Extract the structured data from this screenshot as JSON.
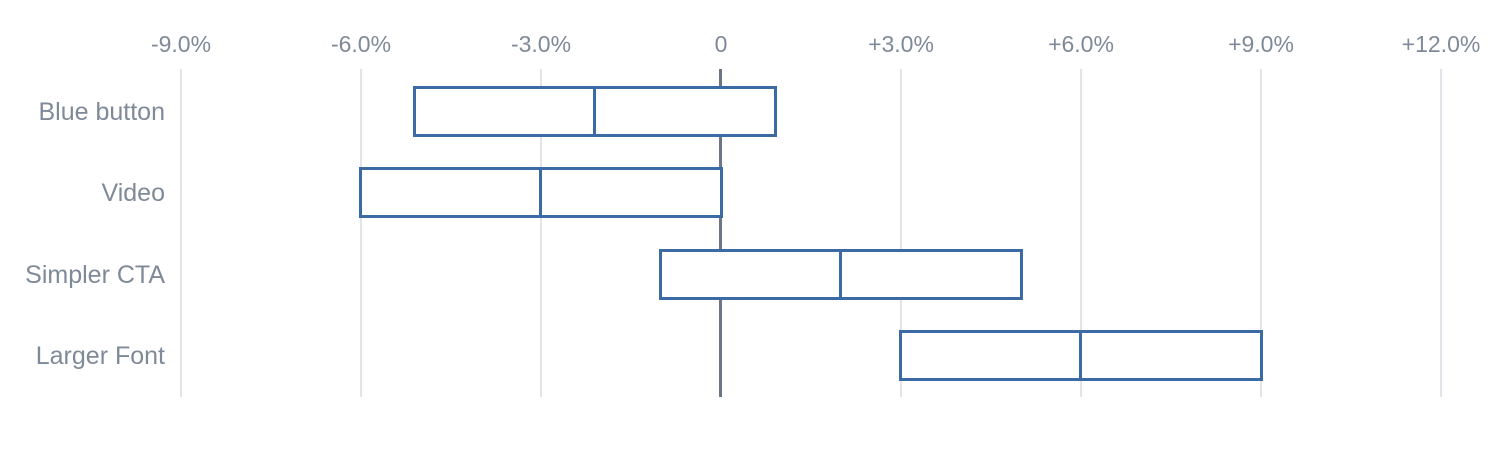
{
  "chart_data": {
    "type": "bar",
    "subtype": "horizontal-range-interval",
    "title": "",
    "xlabel": "",
    "ylabel": "",
    "unit": "%",
    "grid": true,
    "legend": false,
    "x_axis": {
      "position": "top",
      "min": -9,
      "max": 12,
      "ticks": [
        {
          "value": -9,
          "label": "-9.0%"
        },
        {
          "value": -6,
          "label": "-6.0%"
        },
        {
          "value": -3,
          "label": "-3.0%"
        },
        {
          "value": 0,
          "label": "0"
        },
        {
          "value": 3,
          "label": "+3.0%"
        },
        {
          "value": 6,
          "label": "+6.0%"
        },
        {
          "value": 9,
          "label": "+9.0%"
        },
        {
          "value": 12,
          "label": "+12.0%"
        }
      ]
    },
    "categories": [
      "Blue button",
      "Video",
      "Simpler CTA",
      "Larger Font"
    ],
    "series": [
      {
        "label": "Blue button",
        "low": -5.1,
        "mid": -2.1,
        "high": 0.9
      },
      {
        "label": "Video",
        "low": -6.0,
        "mid": -3.0,
        "high": 0.0
      },
      {
        "label": "Simpler CTA",
        "low": -1.0,
        "mid": 2.0,
        "high": 5.0
      },
      {
        "label": "Larger Font",
        "low": 3.0,
        "mid": 6.0,
        "high": 9.0
      }
    ]
  },
  "colors": {
    "background": "#ffffff",
    "box_border": "#3b6aa5",
    "box_fill": "#ffffff",
    "zero_line": "#6c7786",
    "grid_line": "#e1e4e8",
    "label_text": "#7f8a99"
  }
}
